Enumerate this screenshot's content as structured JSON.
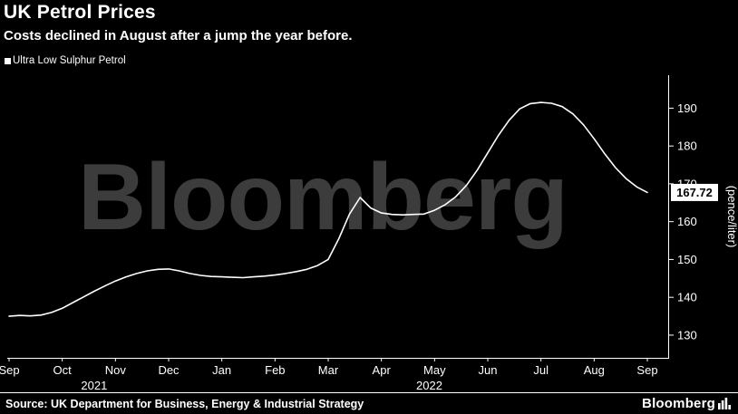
{
  "header": {
    "title": "UK Petrol Prices",
    "subtitle": "Costs declined in August after a jump the year before."
  },
  "legend": {
    "label": "Ultra Low Sulphur Petrol"
  },
  "watermark": "Bloomberg",
  "footer": {
    "source": "Source: UK Department for Business, Energy & Industrial Strategy",
    "logo_text": "Bloomberg"
  },
  "colors": {
    "background": "#000000",
    "line": "#ffffff",
    "axis": "#ffffff",
    "watermark": "#3c3c3c",
    "label_box_bg": "#ffffff",
    "label_box_text": "#000000"
  },
  "chart_data": {
    "type": "line",
    "title": "UK Petrol Prices",
    "subtitle": "Costs declined in August after a jump the year before.",
    "ylabel": "(pence/liter)",
    "y_ticks": [
      130,
      140,
      150,
      160,
      170,
      180,
      190
    ],
    "ylim": [
      124,
      198
    ],
    "x_unit": "months from Sep 2021 (0 = Sep 2021, 12 = Sep 2022)",
    "x_start": 0,
    "x_step": 0.2,
    "x_tick_labels": [
      "Sep",
      "Oct",
      "Nov",
      "Dec",
      "Jan",
      "Feb",
      "Mar",
      "Apr",
      "May",
      "Jun",
      "Jul",
      "Aug",
      "Sep"
    ],
    "x_year_labels": [
      {
        "label": "2021",
        "month_index": 1.6
      },
      {
        "label": "2022",
        "month_index": 7.9
      }
    ],
    "grid": false,
    "legend_position": "top-left",
    "series": [
      {
        "name": "Ultra Low Sulphur Petrol",
        "values": [
          135.0,
          135.2,
          135.1,
          135.3,
          136.0,
          137.1,
          138.6,
          140.1,
          141.6,
          143.0,
          144.3,
          145.4,
          146.3,
          147.0,
          147.4,
          147.5,
          147.0,
          146.3,
          145.8,
          145.5,
          145.4,
          145.3,
          145.2,
          145.4,
          145.6,
          145.9,
          146.3,
          146.8,
          147.4,
          148.4,
          150.0,
          155.5,
          162.0,
          166.4,
          163.6,
          162.3,
          161.9,
          161.8,
          161.9,
          162.0,
          163.0,
          164.5,
          166.6,
          169.6,
          173.6,
          178.2,
          182.8,
          186.8,
          189.8,
          191.2,
          191.5,
          191.3,
          190.4,
          188.5,
          185.6,
          181.9,
          177.9,
          174.3,
          171.4,
          169.2,
          167.72
        ]
      }
    ],
    "last_value": 167.72,
    "last_value_label": "167.72"
  }
}
